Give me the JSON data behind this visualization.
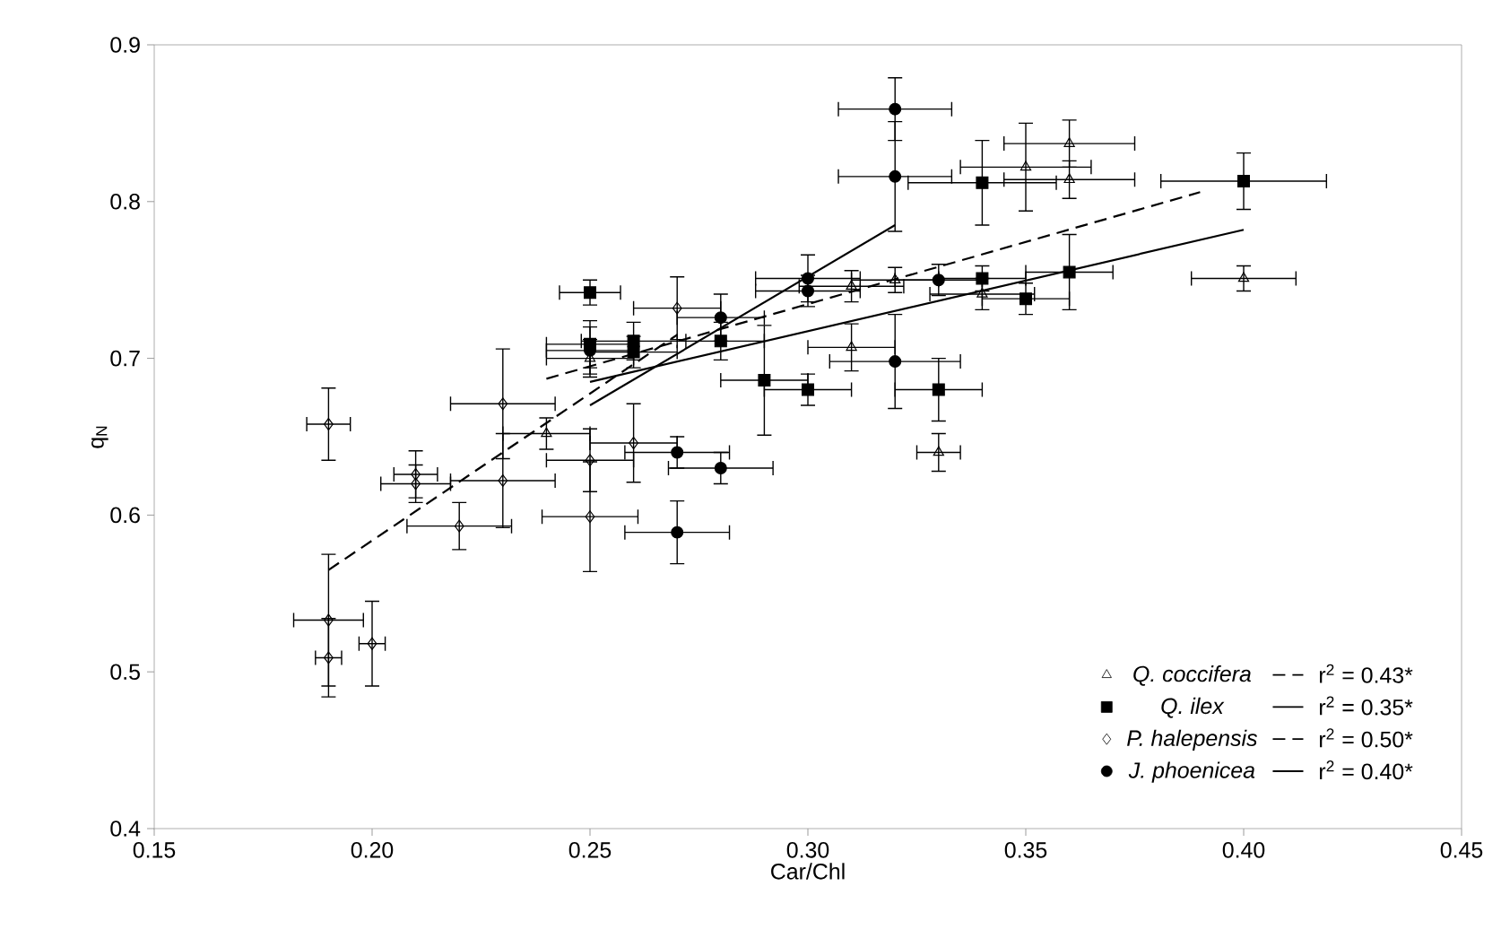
{
  "chart_data": {
    "type": "scatter",
    "xlabel": "Car/Chl",
    "ylabel": "q$_{N}$",
    "xlim": [
      0.15,
      0.45
    ],
    "ylim": [
      0.4,
      0.9
    ],
    "xticks": [
      0.15,
      {
        "value": 0.2,
        "label": "0.20"
      },
      0.25,
      {
        "value": 0.3,
        "label": "0.30"
      },
      0.35,
      {
        "value": 0.4,
        "label": "0.40"
      },
      0.45
    ],
    "yticks": [
      0.4,
      0.5,
      0.6,
      0.7,
      0.8,
      0.9
    ],
    "legend": "bottom right",
    "grid": false,
    "series": [
      {
        "name": "Q. coccifera",
        "marker": "triangle",
        "color": "#000000",
        "x": [
          0.24,
          0.25,
          0.31,
          0.32,
          0.34,
          0.31,
          0.33,
          0.35,
          0.36,
          0.36,
          0.4
        ],
        "values": [
          0.652,
          0.7,
          0.746,
          0.75,
          0.741,
          0.707,
          0.64,
          0.822,
          0.837,
          0.814,
          0.751
        ],
        "xerrors": [
          0.01,
          0.01,
          0.012,
          0.01,
          0.012,
          0.01,
          0.005,
          0.015,
          0.015,
          0.015,
          0.012
        ],
        "errors": [
          0.01,
          0.012,
          0.01,
          0.008,
          0.01,
          0.015,
          0.012,
          0.028,
          0.015,
          0.012,
          0.008
        ]
      },
      {
        "name": "Q. ilex",
        "marker": "square",
        "color": "#000000",
        "x": [
          0.25,
          0.25,
          0.26,
          0.26,
          0.28,
          0.29,
          0.3,
          0.33,
          0.34,
          0.35,
          0.36,
          0.34,
          0.4
        ],
        "values": [
          0.742,
          0.709,
          0.711,
          0.704,
          0.711,
          0.686,
          0.68,
          0.68,
          0.751,
          0.738,
          0.755,
          0.812,
          0.813
        ],
        "xerrors": [
          0.007,
          0.01,
          0.012,
          0.01,
          0.01,
          0.01,
          0.01,
          0.01,
          0.01,
          0.01,
          0.01,
          0.017,
          0.019
        ],
        "errors": [
          0.008,
          0.015,
          0.012,
          0.01,
          0.012,
          0.035,
          0.01,
          0.02,
          0.008,
          0.01,
          0.024,
          0.027,
          0.018
        ]
      },
      {
        "name": "P. halepensis",
        "marker": "diamond",
        "color": "#000000",
        "x": [
          0.19,
          0.19,
          0.2,
          0.19,
          0.21,
          0.21,
          0.22,
          0.23,
          0.23,
          0.25,
          0.25,
          0.26,
          0.27
        ],
        "values": [
          0.533,
          0.509,
          0.518,
          0.658,
          0.62,
          0.626,
          0.593,
          0.622,
          0.671,
          0.635,
          0.599,
          0.646,
          0.732
        ],
        "xerrors": [
          0.008,
          0.003,
          0.003,
          0.005,
          0.008,
          0.005,
          0.012,
          0.012,
          0.012,
          0.01,
          0.011,
          0.01,
          0.01
        ],
        "errors": [
          0.042,
          0.025,
          0.027,
          0.023,
          0.012,
          0.015,
          0.015,
          0.03,
          0.035,
          0.02,
          0.035,
          0.025,
          0.02
        ]
      },
      {
        "name": "J. phoenicea",
        "marker": "circle",
        "color": "#000000",
        "x": [
          0.25,
          0.27,
          0.27,
          0.28,
          0.28,
          0.3,
          0.3,
          0.32,
          0.33,
          0.32,
          0.32
        ],
        "values": [
          0.705,
          0.64,
          0.589,
          0.63,
          0.726,
          0.751,
          0.743,
          0.698,
          0.75,
          0.859,
          0.816
        ],
        "xerrors": [
          0.01,
          0.012,
          0.012,
          0.012,
          0.01,
          0.012,
          0.012,
          0.015,
          0.01,
          0.013,
          0.013
        ],
        "errors": [
          0.015,
          0.01,
          0.02,
          0.01,
          0.015,
          0.015,
          0.01,
          0.03,
          0.01,
          0.02,
          0.035
        ]
      },
      {
        "name": "r$^{2}$ = 0.43*",
        "type": "line",
        "line_style": "dashed",
        "color": "#000000",
        "x": [
          0.24,
          0.39
        ],
        "values": [
          0.687,
          0.806
        ]
      },
      {
        "name": "r$^{2}$ = 0.35*",
        "type": "line",
        "line_style": "solid",
        "color": "#000000",
        "x": [
          0.25,
          0.4
        ],
        "values": [
          0.685,
          0.782
        ]
      },
      {
        "name": "r$^{2}$ = 0.50*",
        "type": "line",
        "line_style": "dashed",
        "color": "#000000",
        "x": [
          0.19,
          0.27
        ],
        "values": [
          0.565,
          0.715
        ]
      },
      {
        "name": "r$^{2}$ = 0.40*",
        "type": "line",
        "line_style": "solid",
        "color": "#000000",
        "x": [
          0.25,
          0.32
        ],
        "values": [
          0.67,
          0.785
        ]
      }
    ]
  }
}
